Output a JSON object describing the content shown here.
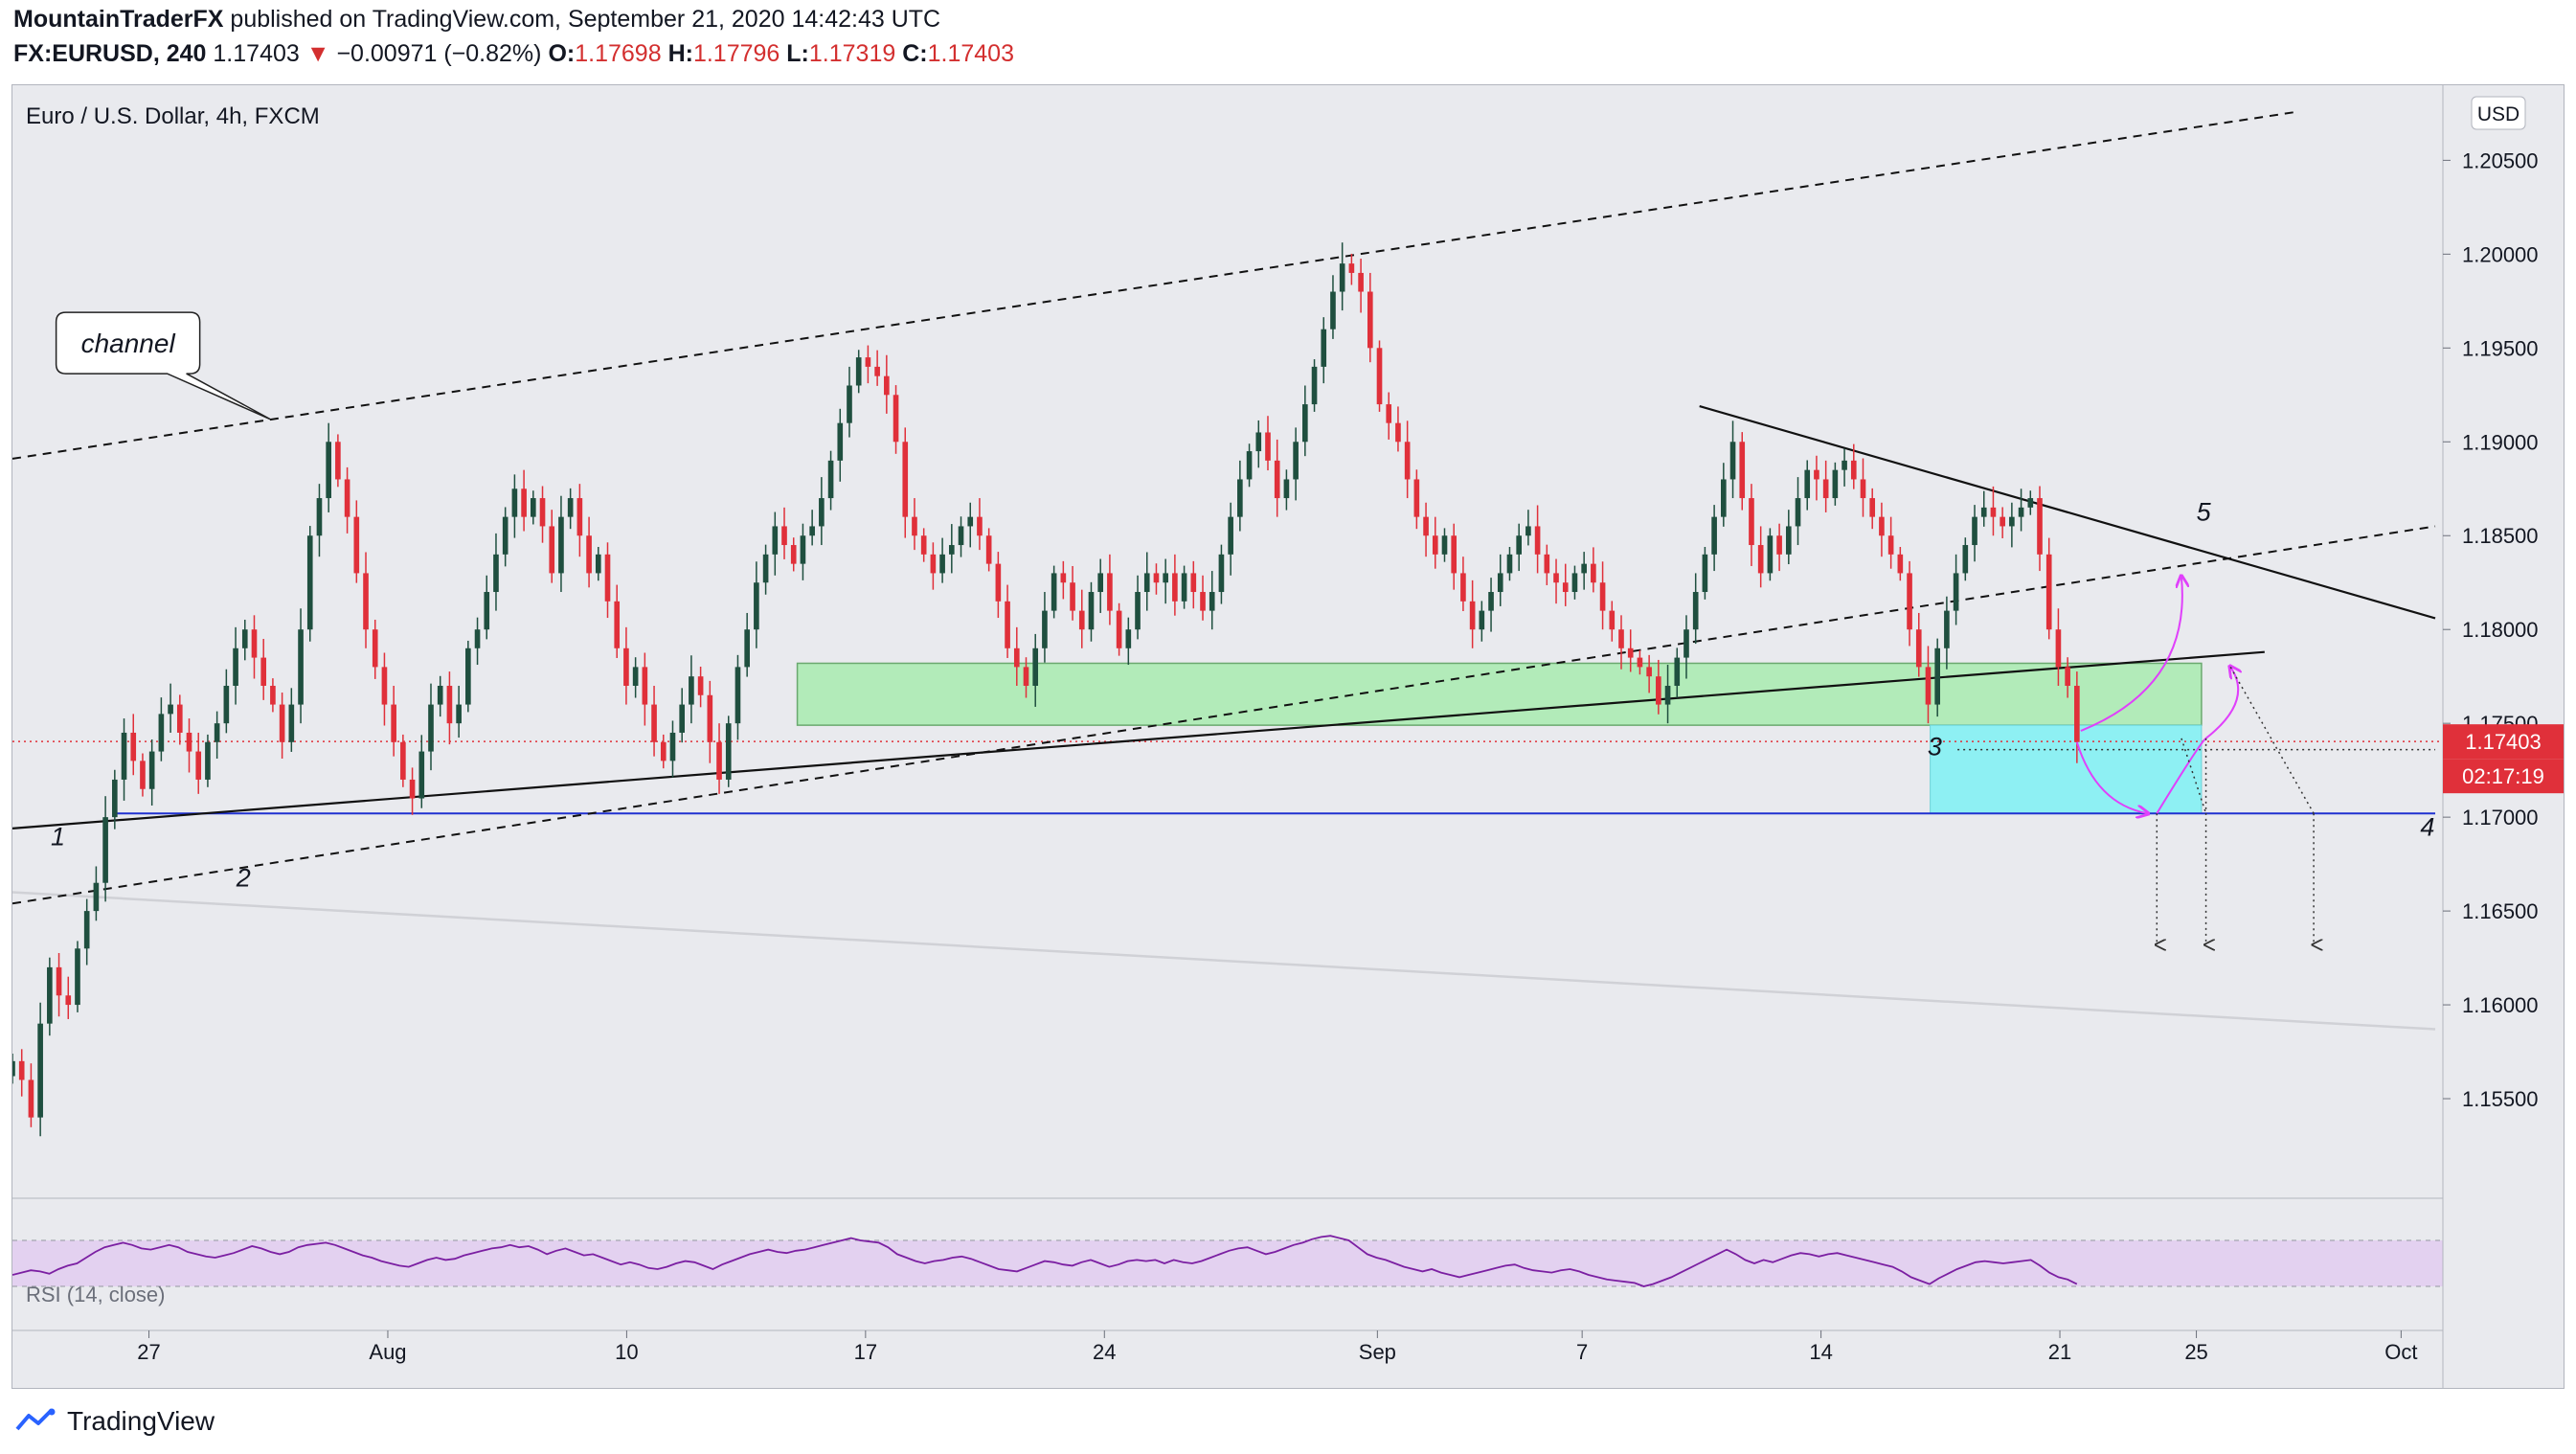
{
  "header": {
    "author": "MountainTraderFX",
    "published_text": " published on TradingView.com, September 21, 2020 14:42:43 UTC",
    "symbol": "FX:EURUSD, 240",
    "last": "1.17403",
    "change_arrow": "▼",
    "change": "−0.00971 (−0.82%)",
    "o_label": "O:",
    "o_val": "1.17698",
    "h_label": "H:",
    "h_val": "1.17796",
    "l_label": "L:",
    "l_val": "1.17319",
    "c_label": "C:",
    "c_val": "1.17403"
  },
  "footer": {
    "logo_text": "TradingView",
    "logo_icon": "tradingview-logo-icon"
  },
  "chart_data": {
    "type": "candlestick",
    "title": "Euro / U.S. Dollar, 4h, FXCM",
    "currency": "USD",
    "y_range": [
      1.15,
      1.209
    ],
    "price_ticks": [
      "1.15500",
      "1.16000",
      "1.16500",
      "1.17000",
      "1.17500",
      "1.18000",
      "1.18500",
      "1.19000",
      "1.19500",
      "1.20000",
      "1.20500"
    ],
    "x_range": [
      "2020-07-23",
      "2020-10-02"
    ],
    "date_ticks": [
      {
        "label": "27",
        "date": "2020-07-27"
      },
      {
        "label": "Aug",
        "date": "2020-08-03"
      },
      {
        "label": "10",
        "date": "2020-08-10"
      },
      {
        "label": "17",
        "date": "2020-08-17"
      },
      {
        "label": "24",
        "date": "2020-08-24"
      },
      {
        "label": "Sep",
        "date": "2020-09-01"
      },
      {
        "label": "7",
        "date": "2020-09-07"
      },
      {
        "label": "14",
        "date": "2020-09-14"
      },
      {
        "label": "21",
        "date": "2020-09-21"
      },
      {
        "label": "25",
        "date": "2020-09-25"
      },
      {
        "label": "Oct",
        "date": "2020-10-01"
      }
    ],
    "last_price": "1.17403",
    "last_price_value": 1.17403,
    "countdown": "02:17:19",
    "bull_color": "#1f4f3f",
    "bear_color": "#e0303a",
    "closes": [
      1.157,
      1.156,
      1.154,
      1.159,
      1.162,
      1.1605,
      1.16,
      1.163,
      1.165,
      1.1665,
      1.17,
      1.172,
      1.1745,
      1.173,
      1.1715,
      1.1735,
      1.1755,
      1.176,
      1.1745,
      1.1735,
      1.172,
      1.174,
      1.175,
      1.177,
      1.179,
      1.18,
      1.1785,
      1.177,
      1.176,
      1.174,
      1.176,
      1.18,
      1.185,
      1.187,
      1.19,
      1.188,
      1.186,
      1.183,
      1.18,
      1.178,
      1.176,
      1.174,
      1.172,
      1.171,
      1.1735,
      1.176,
      1.177,
      1.175,
      1.176,
      1.179,
      1.18,
      1.182,
      1.184,
      1.186,
      1.1875,
      1.186,
      1.187,
      1.1855,
      1.183,
      1.186,
      1.187,
      1.185,
      1.183,
      1.184,
      1.1815,
      1.179,
      1.177,
      1.178,
      1.176,
      1.174,
      1.173,
      1.1745,
      1.176,
      1.1775,
      1.1765,
      1.174,
      1.172,
      1.175,
      1.178,
      1.18,
      1.1825,
      1.184,
      1.1855,
      1.1845,
      1.1835,
      1.185,
      1.1855,
      1.187,
      1.189,
      1.191,
      1.193,
      1.1945,
      1.194,
      1.1935,
      1.1925,
      1.19,
      1.186,
      1.185,
      1.184,
      1.183,
      1.184,
      1.1845,
      1.1855,
      1.186,
      1.185,
      1.1835,
      1.1815,
      1.179,
      1.178,
      1.177,
      1.179,
      1.181,
      1.183,
      1.1825,
      1.181,
      1.18,
      1.182,
      1.183,
      1.181,
      1.179,
      1.18,
      1.182,
      1.183,
      1.1825,
      1.183,
      1.1815,
      1.183,
      1.182,
      1.181,
      1.182,
      1.184,
      1.186,
      1.188,
      1.1895,
      1.1905,
      1.189,
      1.187,
      1.188,
      1.19,
      1.192,
      1.194,
      1.196,
      1.198,
      1.1995,
      1.199,
      1.198,
      1.195,
      1.192,
      1.191,
      1.19,
      1.188,
      1.186,
      1.185,
      1.184,
      1.185,
      1.183,
      1.1815,
      1.18,
      1.181,
      1.182,
      1.183,
      1.184,
      1.185,
      1.1855,
      1.184,
      1.183,
      1.1825,
      1.182,
      1.183,
      1.1835,
      1.1825,
      1.181,
      1.18,
      1.179,
      1.1785,
      1.178,
      1.1775,
      1.176,
      1.177,
      1.1785,
      1.18,
      1.182,
      1.184,
      1.186,
      1.188,
      1.19,
      1.187,
      1.1845,
      1.183,
      1.185,
      1.184,
      1.1855,
      1.187,
      1.1885,
      1.188,
      1.187,
      1.1885,
      1.189,
      1.188,
      1.187,
      1.186,
      1.185,
      1.184,
      1.183,
      1.18,
      1.178,
      1.176,
      1.179,
      1.181,
      1.183,
      1.1845,
      1.186,
      1.1865,
      1.186,
      1.1855,
      1.186,
      1.1865,
      1.187,
      1.184,
      1.18,
      1.178,
      1.177,
      1.174
    ],
    "annotations": {
      "callout": "channel",
      "wave_labels": [
        "1",
        "2",
        "3",
        "4",
        "5"
      ]
    },
    "rsi": {
      "label": "RSI (14, close)",
      "upper": 70,
      "lower": 30,
      "values": [
        40,
        42,
        44,
        43,
        41,
        45,
        48,
        50,
        55,
        60,
        64,
        66,
        68,
        66,
        63,
        62,
        64,
        66,
        64,
        60,
        58,
        56,
        55,
        57,
        59,
        62,
        65,
        63,
        60,
        58,
        60,
        64,
        66,
        67,
        68,
        66,
        63,
        60,
        57,
        55,
        52,
        50,
        48,
        47,
        50,
        53,
        55,
        53,
        54,
        57,
        59,
        61,
        63,
        64,
        66,
        64,
        65,
        62,
        58,
        61,
        63,
        60,
        57,
        58,
        55,
        52,
        49,
        51,
        49,
        46,
        45,
        47,
        50,
        52,
        51,
        48,
        45,
        49,
        52,
        55,
        58,
        60,
        62,
        60,
        59,
        61,
        62,
        64,
        66,
        68,
        70,
        72,
        70,
        69,
        68,
        64,
        58,
        55,
        52,
        50,
        52,
        53,
        55,
        56,
        54,
        51,
        48,
        45,
        44,
        43,
        46,
        49,
        52,
        51,
        49,
        48,
        51,
        53,
        50,
        47,
        49,
        52,
        53,
        52,
        53,
        50,
        53,
        51,
        50,
        52,
        55,
        58,
        61,
        63,
        64,
        61,
        58,
        60,
        63,
        66,
        68,
        71,
        73,
        74,
        72,
        70,
        64,
        58,
        55,
        53,
        50,
        47,
        45,
        43,
        45,
        42,
        40,
        38,
        40,
        42,
        44,
        46,
        48,
        49,
        46,
        44,
        43,
        42,
        44,
        45,
        43,
        40,
        38,
        36,
        35,
        34,
        33,
        30,
        32,
        35,
        38,
        42,
        46,
        50,
        54,
        58,
        62,
        58,
        53,
        50,
        53,
        51,
        54,
        57,
        59,
        58,
        56,
        58,
        59,
        57,
        55,
        53,
        51,
        49,
        47,
        43,
        38,
        35,
        32,
        37,
        41,
        45,
        48,
        51,
        52,
        51,
        50,
        51,
        52,
        53,
        48,
        42,
        38,
        36,
        32
      ]
    }
  }
}
